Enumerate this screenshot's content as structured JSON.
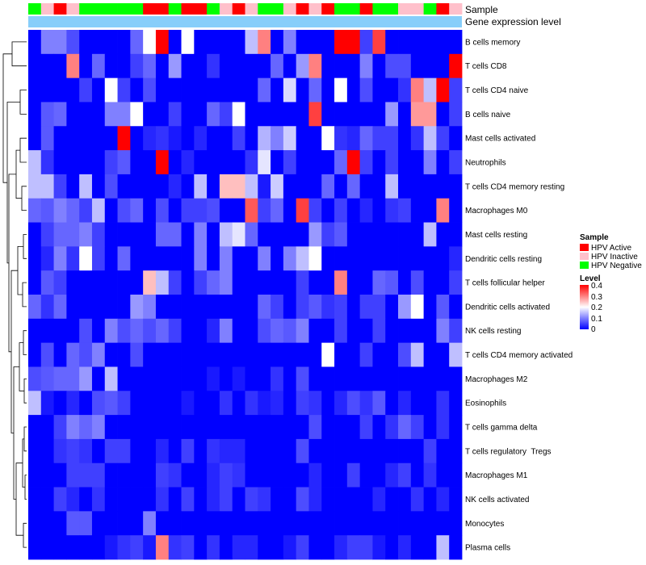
{
  "chart_data": {
    "type": "heatmap",
    "title": "",
    "annotation_tracks": [
      "Sample",
      "Gene expression level"
    ],
    "sample_levels": [
      "HPV Active",
      "HPV Inactive",
      "HPV Negative"
    ],
    "sample_colors": {
      "HPV Active": "#ff0000",
      "HPV Inactive": "#ffc0cb",
      "HPV Negative": "#00ff00"
    },
    "column_samples": [
      2,
      1,
      0,
      1,
      2,
      2,
      2,
      2,
      2,
      0,
      0,
      2,
      0,
      0,
      2,
      1,
      0,
      1,
      2,
      2,
      1,
      0,
      1,
      0,
      2,
      2,
      0,
      2,
      2,
      1,
      1,
      2,
      0,
      1
    ],
    "expression_track_color": "#87cefa",
    "rows": [
      "B cells memory",
      "T cells CD8",
      "T cells CD4 naive",
      "B cells naive",
      "Mast cells activated",
      "Neutrophils",
      "T cells CD4 memory resting",
      "Macrophages M0",
      "Mast cells resting",
      "Dendritic cells resting",
      "T cells follicular helper",
      "Dendritic cells activated",
      "NK cells resting",
      "T cells CD4 memory activated",
      "Macrophages M2",
      "Eosinophils",
      "T cells gamma delta",
      "T cells regulatory  Tregs",
      "Macrophages M1",
      "NK cells activated",
      "Monocytes",
      "Plasma cells"
    ],
    "values": [
      [
        0,
        0.1,
        0.1,
        0.06,
        0,
        0,
        0,
        0,
        0.08,
        0.2,
        0.4,
        0,
        0.2,
        0,
        0,
        0,
        0,
        0.15,
        0.3,
        0,
        0.1,
        0,
        0,
        0,
        0.4,
        0.4,
        0.05,
        0.35,
        0,
        0,
        0,
        0,
        0,
        0
      ],
      [
        0,
        0,
        0,
        0.3,
        0,
        0.08,
        0,
        0,
        0.05,
        0.08,
        0,
        0.12,
        0,
        0,
        0.04,
        0,
        0,
        0,
        0,
        0.08,
        0,
        0.12,
        0.3,
        0,
        0,
        0,
        0.1,
        0,
        0.06,
        0.06,
        0,
        0,
        0,
        0.4
      ],
      [
        0,
        0,
        0,
        0,
        0.05,
        0,
        0.2,
        0.05,
        0,
        0.06,
        0,
        0,
        0,
        0,
        0,
        0,
        0,
        0,
        0.08,
        0,
        0.17,
        0,
        0.08,
        0,
        0.2,
        0,
        0.06,
        0,
        0,
        0.04,
        0.3,
        0.15,
        0.4,
        0.05
      ],
      [
        0,
        0.07,
        0.08,
        0,
        0,
        0,
        0.1,
        0.1,
        0.2,
        0,
        0,
        0.05,
        0,
        0,
        0.08,
        0.05,
        0.2,
        0,
        0,
        0,
        0,
        0,
        0.35,
        0,
        0,
        0,
        0,
        0,
        0.12,
        0,
        0.28,
        0.28,
        0,
        0.05
      ],
      [
        0,
        0.07,
        0,
        0,
        0,
        0,
        0,
        0.4,
        0,
        0.03,
        0.04,
        0.02,
        0,
        0.03,
        0,
        0,
        0.05,
        0,
        0.14,
        0.1,
        0.16,
        0,
        0,
        0.2,
        0.04,
        0.03,
        0.08,
        0.05,
        0.05,
        0,
        0.04,
        0.15,
        0.05,
        0
      ],
      [
        0.15,
        0.04,
        0,
        0,
        0,
        0,
        0.05,
        0.07,
        0,
        0,
        0.4,
        0,
        0.03,
        0,
        0,
        0,
        0,
        0.04,
        0.18,
        0,
        0.05,
        0,
        0,
        0,
        0.08,
        0.4,
        0.05,
        0,
        0.05,
        0,
        0,
        0.1,
        0,
        0.05
      ],
      [
        0.15,
        0.15,
        0.05,
        0,
        0.15,
        0,
        0.06,
        0,
        0,
        0,
        0,
        0.03,
        0,
        0.15,
        0,
        0.25,
        0.25,
        0.15,
        0.02,
        0.16,
        0,
        0,
        0,
        0.08,
        0,
        0.08,
        0,
        0,
        0.15,
        0,
        0,
        0,
        0,
        0
      ],
      [
        0.08,
        0.07,
        0.1,
        0.08,
        0.05,
        0.15,
        0,
        0.06,
        0.08,
        0,
        0.06,
        0,
        0.05,
        0.05,
        0.06,
        0,
        0,
        0.33,
        0.05,
        0.08,
        0,
        0.35,
        0.05,
        0,
        0.05,
        0,
        0.03,
        0,
        0.04,
        0.05,
        0,
        0,
        0.3,
        0
      ],
      [
        0,
        0.05,
        0.08,
        0.08,
        0.1,
        0.05,
        0,
        0,
        0,
        0,
        0.08,
        0.08,
        0,
        0.1,
        0,
        0.15,
        0.18,
        0.08,
        0,
        0,
        0,
        0,
        0.12,
        0.05,
        0.07,
        0,
        0,
        0,
        0,
        0,
        0,
        0.15,
        0,
        0
      ],
      [
        0,
        0.03,
        0.1,
        0.04,
        0.2,
        0.05,
        0,
        0.08,
        0,
        0,
        0,
        0,
        0,
        0.1,
        0,
        0.1,
        0,
        0,
        0.1,
        0,
        0.1,
        0.15,
        0.2,
        0,
        0,
        0,
        0,
        0,
        0,
        0,
        0,
        0,
        0,
        0.03
      ],
      [
        0,
        0.07,
        0.05,
        0,
        0,
        0,
        0,
        0,
        0,
        0.25,
        0.15,
        0.05,
        0,
        0.05,
        0.08,
        0.1,
        0,
        0,
        0,
        0,
        0,
        0.05,
        0,
        0,
        0.3,
        0,
        0,
        0.08,
        0.07,
        0,
        0.06,
        0,
        0,
        0.05
      ],
      [
        0.08,
        0.04,
        0.08,
        0,
        0,
        0,
        0,
        0,
        0.12,
        0.1,
        0,
        0,
        0,
        0,
        0,
        0,
        0,
        0,
        0.08,
        0.05,
        0,
        0.05,
        0.07,
        0.04,
        0.05,
        0,
        0.05,
        0.05,
        0,
        0.12,
        0.2,
        0,
        0.07,
        0
      ],
      [
        0,
        0,
        0,
        0,
        0.06,
        0,
        0.1,
        0.06,
        0.08,
        0.06,
        0.08,
        0.05,
        0,
        0,
        0.03,
        0.1,
        0,
        0,
        0.06,
        0.08,
        0.07,
        0.1,
        0,
        0,
        0.05,
        0,
        0,
        0.05,
        0,
        0,
        0,
        0,
        0.1,
        0.05
      ],
      [
        0,
        0.06,
        0,
        0.08,
        0.06,
        0.1,
        0,
        0,
        0.06,
        0,
        0,
        0,
        0,
        0,
        0,
        0,
        0,
        0,
        0,
        0,
        0,
        0,
        0,
        0.2,
        0,
        0,
        0.05,
        0,
        0,
        0.06,
        0.15,
        0,
        0,
        0.15
      ],
      [
        0.06,
        0.07,
        0.08,
        0.08,
        0.12,
        0,
        0.15,
        0,
        0,
        0,
        0,
        0,
        0,
        0,
        0.02,
        0,
        0.02,
        0,
        0,
        0.04,
        0,
        0.06,
        0,
        0,
        0,
        0,
        0,
        0,
        0,
        0,
        0,
        0,
        0,
        0
      ],
      [
        0.15,
        0.02,
        0,
        0.03,
        0,
        0.06,
        0.07,
        0.05,
        0,
        0,
        0,
        0,
        0.02,
        0,
        0,
        0.04,
        0,
        0.04,
        0.02,
        0.03,
        0,
        0.05,
        0.04,
        0,
        0.03,
        0.06,
        0.04,
        0.07,
        0,
        0.03,
        0,
        0,
        0.04,
        0
      ],
      [
        0,
        0,
        0.05,
        0.1,
        0.08,
        0.1,
        0,
        0,
        0,
        0,
        0,
        0,
        0,
        0,
        0,
        0,
        0,
        0,
        0,
        0,
        0,
        0,
        0.06,
        0,
        0,
        0,
        0.05,
        0,
        0.04,
        0.08,
        0.05,
        0,
        0.04,
        0
      ],
      [
        0,
        0,
        0.04,
        0.05,
        0.04,
        0,
        0.05,
        0.05,
        0,
        0,
        0.03,
        0,
        0.05,
        0,
        0.04,
        0.03,
        0.03,
        0,
        0,
        0,
        0,
        0.06,
        0,
        0,
        0,
        0,
        0,
        0,
        0,
        0,
        0,
        0.05,
        0,
        0
      ],
      [
        0,
        0,
        0,
        0.05,
        0.05,
        0.05,
        0,
        0,
        0,
        0,
        0.05,
        0.04,
        0,
        0,
        0.03,
        0.05,
        0.04,
        0,
        0,
        0,
        0,
        0,
        0.03,
        0,
        0,
        0.05,
        0,
        0,
        0.03,
        0.05,
        0,
        0.04,
        0,
        0
      ],
      [
        0,
        0,
        0.05,
        0.03,
        0,
        0.04,
        0,
        0,
        0,
        0,
        0.04,
        0,
        0.05,
        0,
        0.03,
        0.05,
        0,
        0.05,
        0.04,
        0,
        0,
        0.06,
        0.03,
        0,
        0,
        0,
        0,
        0.03,
        0,
        0,
        0.04,
        0,
        0.03,
        0
      ],
      [
        0,
        0,
        0,
        0.07,
        0.07,
        0,
        0,
        0,
        0,
        0.1,
        0,
        0,
        0,
        0,
        0,
        0,
        0,
        0,
        0,
        0,
        0,
        0,
        0,
        0,
        0,
        0,
        0,
        0,
        0,
        0,
        0,
        0,
        0,
        0
      ],
      [
        0,
        0,
        0,
        0,
        0,
        0,
        0.02,
        0.04,
        0.05,
        0.02,
        0.3,
        0.04,
        0.05,
        0,
        0.04,
        0,
        0.03,
        0.03,
        0,
        0,
        0.02,
        0.05,
        0,
        0,
        0.03,
        0.05,
        0.05,
        0.02,
        0,
        0.03,
        0,
        0,
        0.15,
        0
      ]
    ],
    "color_scale": {
      "min": 0,
      "max": 0.4,
      "colors": [
        "#0000ff",
        "#ffffff",
        "#ff0000"
      ],
      "midpoint": 0.2
    },
    "legends": [
      {
        "title": "Sample",
        "entries": [
          "HPV Active",
          "HPV Inactive",
          "HPV Negative"
        ]
      },
      {
        "title": "Level",
        "ticks": [
          "0.4",
          "0.3",
          "0.2",
          "0.1",
          "0"
        ]
      }
    ],
    "row_dendrogram": true,
    "column_dendrogram": false
  }
}
